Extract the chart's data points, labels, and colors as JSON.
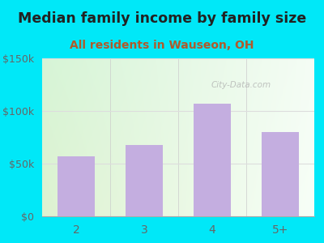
{
  "title": "Median family income by family size",
  "subtitle": "All residents in Wauseon, OH",
  "categories": [
    "2",
    "3",
    "4",
    "5+"
  ],
  "values": [
    57000,
    68000,
    107000,
    80000
  ],
  "bar_color": "#c4aee0",
  "ylim": [
    0,
    150000
  ],
  "yticks": [
    0,
    50000,
    100000,
    150000
  ],
  "ytick_labels": [
    "$0",
    "$50k",
    "$100k",
    "$150k"
  ],
  "bg_outer": "#00e8f8",
  "title_color": "#222222",
  "subtitle_color": "#b05a2a",
  "axis_color": "#555555",
  "tick_label_color": "#666666",
  "watermark": "City-Data.com",
  "title_fontsize": 12.5,
  "subtitle_fontsize": 10,
  "grid_color": "#dddddd"
}
